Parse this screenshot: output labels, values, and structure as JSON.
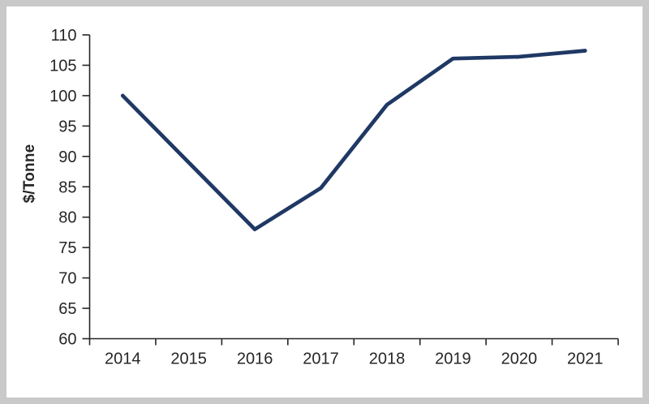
{
  "chart_data": {
    "type": "line",
    "title": "",
    "xlabel": "",
    "ylabel": "$/Tonne",
    "categories": [
      "2014",
      "2015",
      "2016",
      "2017",
      "2018",
      "2019",
      "2020",
      "2021"
    ],
    "series": [
      {
        "name": "$/Tonne",
        "values": [
          100,
          89,
          78,
          84.8,
          98.5,
          106.1,
          106.4,
          107.4
        ]
      }
    ],
    "ylim": [
      60,
      110
    ],
    "ytick_step": 5,
    "y_tick_labels": [
      "60",
      "65",
      "70",
      "75",
      "80",
      "85",
      "90",
      "95",
      "100",
      "105",
      "110"
    ],
    "grid": false,
    "legend_position": "none",
    "markers": false
  },
  "colors": {
    "line": "#1f3864",
    "axis": "#262626",
    "text": "#262626",
    "frame": "#c9c9c9",
    "background": "#ffffff"
  }
}
